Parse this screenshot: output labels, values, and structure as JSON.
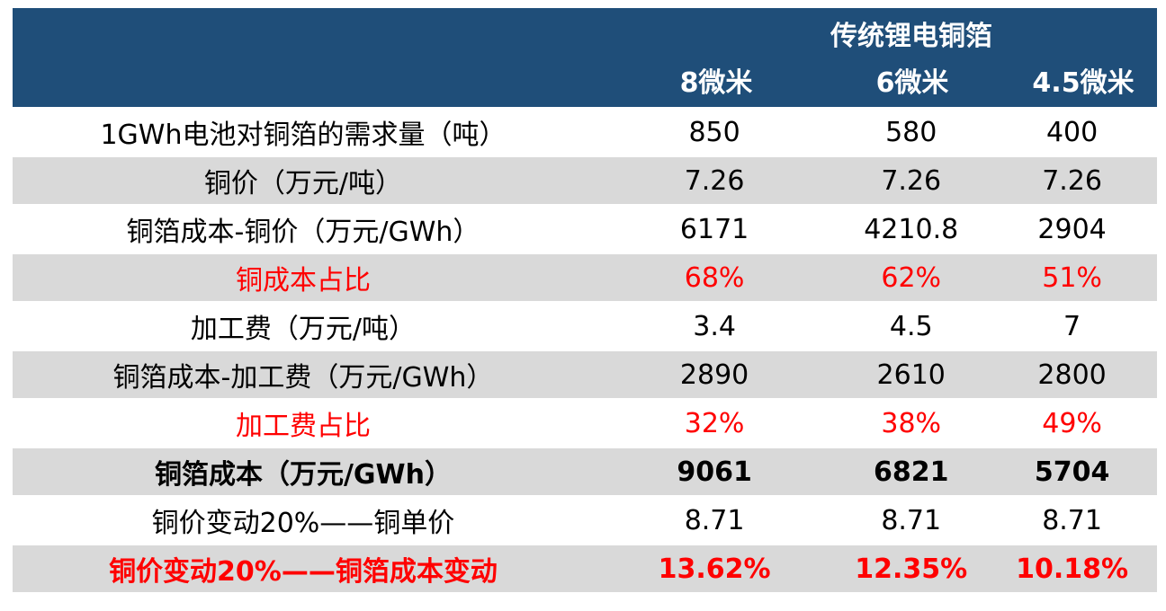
{
  "header": {
    "group_title": "传统锂电铜箔",
    "columns": [
      "8微米",
      "6微米",
      "4.5微米"
    ]
  },
  "rows": [
    {
      "label": "1GWh电池对铜箔的需求量（吨）",
      "values": [
        "850",
        "580",
        "400"
      ]
    },
    {
      "label": "铜价（万元/吨）",
      "values": [
        "7.26",
        "7.26",
        "7.26"
      ]
    },
    {
      "label": "铜箔成本-铜价（万元/GWh）",
      "values": [
        "6171",
        "4210.8",
        "2904"
      ]
    },
    {
      "label": "铜成本占比",
      "values": [
        "68%",
        "62%",
        "51%"
      ]
    },
    {
      "label": "加工费（万元/吨）",
      "values": [
        "3.4",
        "4.5",
        "7"
      ]
    },
    {
      "label": "铜箔成本-加工费（万元/GWh）",
      "values": [
        "2890",
        "2610",
        "2800"
      ]
    },
    {
      "label": "加工费占比",
      "values": [
        "32%",
        "38%",
        "49%"
      ]
    },
    {
      "label": "铜箔成本（万元/GWh）",
      "values": [
        "9061",
        "6821",
        "5704"
      ]
    },
    {
      "label": "铜价变动20%——铜单价",
      "values": [
        "8.71",
        "8.71",
        "8.71"
      ]
    },
    {
      "label": "铜价变动20%——铜箔成本变动",
      "values": [
        "13.62%",
        "12.35%",
        "10.18%"
      ]
    }
  ],
  "colors": {
    "header_bg": "#1f4e79",
    "band_bg": "#d9d9d9",
    "highlight_text": "#ff0000"
  }
}
